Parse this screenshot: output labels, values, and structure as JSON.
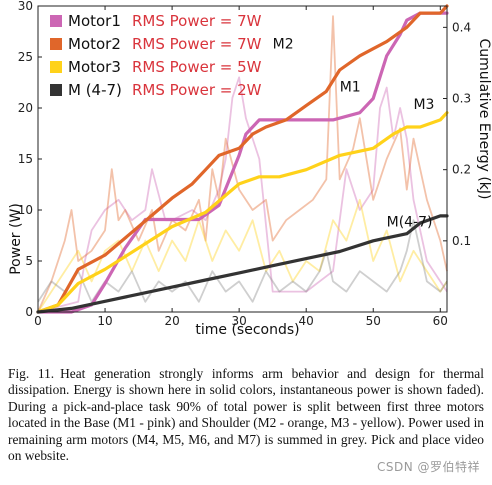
{
  "chart_data": {
    "type": "line",
    "xlabel": "time (seconds)",
    "ylabel_left": "Power (W)",
    "ylabel_right": "Cumulative Energy (kJ)",
    "xlim": [
      0,
      61
    ],
    "ylim_left": [
      0,
      30
    ],
    "ylim_right": [
      0,
      0.43
    ],
    "x_ticks": [
      0,
      10,
      20,
      30,
      40,
      50,
      60
    ],
    "y_left_ticks": [
      0,
      5,
      10,
      15,
      20,
      25,
      30
    ],
    "y_right_ticks": [
      0.1,
      0.2,
      0.3,
      0.4
    ],
    "legend_position": "top-left",
    "legend": [
      {
        "name": "Motor1",
        "rms": "RMS Power = 7W",
        "color": "#cc66b4"
      },
      {
        "name": "Motor2",
        "rms": "RMS Power = 7W",
        "color": "#e0662a"
      },
      {
        "name": "Motor3",
        "rms": "RMS Power = 5W",
        "color": "#ffd21a"
      },
      {
        "name": "M (4-7)",
        "rms": "RMS Power = 2W",
        "color": "#333333"
      }
    ],
    "energy_series": [
      {
        "name": "Motor1",
        "label": "M1",
        "color": "#cc66b4",
        "x": [
          0,
          5,
          8,
          10,
          13,
          16,
          20,
          24,
          27,
          30,
          31,
          33,
          36,
          40,
          41,
          44,
          48,
          50,
          52,
          54,
          55,
          57,
          60,
          61
        ],
        "y": [
          0,
          0,
          0.01,
          0.04,
          0.09,
          0.13,
          0.13,
          0.13,
          0.15,
          0.22,
          0.25,
          0.27,
          0.27,
          0.27,
          0.27,
          0.27,
          0.28,
          0.3,
          0.36,
          0.39,
          0.41,
          0.42,
          0.42,
          0.42
        ]
      },
      {
        "name": "Motor2",
        "label": "M2",
        "color": "#e0662a",
        "x": [
          0,
          3,
          6,
          10,
          15,
          20,
          23,
          25,
          27,
          30,
          32,
          34,
          37,
          40,
          43,
          45,
          48,
          50,
          52,
          55,
          57,
          60,
          61
        ],
        "y": [
          0,
          0.01,
          0.06,
          0.08,
          0.12,
          0.16,
          0.18,
          0.2,
          0.22,
          0.23,
          0.25,
          0.26,
          0.27,
          0.29,
          0.31,
          0.34,
          0.36,
          0.37,
          0.38,
          0.4,
          0.42,
          0.42,
          0.43
        ]
      },
      {
        "name": "Motor3",
        "label": "M3",
        "color": "#ffd21a",
        "x": [
          0,
          3,
          6,
          10,
          15,
          20,
          25,
          30,
          33,
          36,
          40,
          45,
          50,
          53,
          55,
          57,
          60,
          61
        ],
        "y": [
          0,
          0.01,
          0.04,
          0.06,
          0.09,
          0.12,
          0.14,
          0.18,
          0.19,
          0.19,
          0.2,
          0.22,
          0.23,
          0.25,
          0.26,
          0.26,
          0.27,
          0.28
        ]
      },
      {
        "name": "M (4-7)",
        "label": "M(4-7)",
        "color": "#333333",
        "x": [
          0,
          5,
          10,
          15,
          20,
          25,
          30,
          35,
          40,
          45,
          50,
          55,
          57,
          60,
          61
        ],
        "y": [
          0,
          0.005,
          0.015,
          0.025,
          0.035,
          0.045,
          0.055,
          0.065,
          0.075,
          0.085,
          0.1,
          0.11,
          0.125,
          0.135,
          0.135
        ]
      }
    ],
    "power_series": [
      {
        "name": "Motor1",
        "color": "#cc66b4",
        "x": [
          0,
          6,
          7,
          8,
          10,
          12,
          14,
          16,
          17,
          19,
          20,
          23,
          25,
          27,
          28,
          29,
          30,
          31,
          33,
          35,
          40,
          44,
          46,
          48,
          50,
          51,
          52,
          53,
          54,
          55,
          56,
          58,
          60,
          61
        ],
        "y": [
          0,
          1,
          5,
          8,
          10,
          11,
          9,
          10,
          14,
          9,
          9,
          10,
          9,
          12,
          15,
          21,
          23,
          19,
          15,
          2,
          2,
          4,
          14,
          10,
          12,
          20,
          22,
          17,
          20,
          17,
          11,
          5,
          3,
          2
        ]
      },
      {
        "name": "Motor2",
        "color": "#e0662a",
        "x": [
          0,
          2,
          4,
          5,
          6,
          8,
          10,
          11,
          12,
          13,
          15,
          17,
          18,
          20,
          22,
          24,
          25,
          26,
          27,
          28,
          30,
          32,
          34,
          35,
          37,
          39,
          41,
          43,
          44,
          45,
          47,
          48,
          50,
          52,
          54,
          55,
          56,
          58,
          60,
          61
        ],
        "y": [
          0,
          3,
          7,
          10,
          5,
          6,
          8,
          14,
          9,
          10,
          7,
          10,
          6,
          9,
          8,
          11,
          7,
          14,
          11,
          17,
          12,
          10,
          11,
          7,
          9,
          10,
          11,
          13,
          29,
          13,
          16,
          19,
          11,
          15,
          18,
          12,
          17,
          11,
          7,
          4
        ]
      },
      {
        "name": "Motor3",
        "color": "#ffd21a",
        "x": [
          0,
          2,
          4,
          6,
          8,
          10,
          12,
          14,
          16,
          18,
          20,
          22,
          24,
          26,
          28,
          30,
          32,
          34,
          36,
          38,
          40,
          42,
          44,
          46,
          48,
          50,
          52,
          54,
          56,
          58,
          60,
          61
        ],
        "y": [
          0,
          2,
          4,
          6,
          3,
          6,
          7,
          4,
          7,
          4,
          7,
          5,
          9,
          5,
          8,
          6,
          9,
          4,
          6,
          3,
          5,
          4,
          9,
          7,
          11,
          5,
          8,
          3,
          6,
          4,
          2,
          3
        ]
      },
      {
        "name": "M (4-7)",
        "color": "#888888",
        "x": [
          0,
          2,
          4,
          6,
          8,
          10,
          12,
          14,
          16,
          18,
          20,
          22,
          24,
          26,
          28,
          30,
          32,
          34,
          36,
          38,
          40,
          42,
          43,
          44,
          46,
          48,
          50,
          52,
          54,
          55,
          56,
          58,
          60,
          61
        ],
        "y": [
          1,
          3,
          2,
          4,
          1,
          3,
          2,
          4,
          1,
          3,
          2,
          3,
          1,
          4,
          2,
          3,
          1,
          4,
          2,
          3,
          2,
          4,
          6,
          3,
          2,
          4,
          3,
          2,
          4,
          6,
          9,
          3,
          2,
          3
        ]
      }
    ]
  },
  "caption": {
    "fig_label": "Fig. 11.",
    "text": "Heat generation strongly informs arm behavior and design for thermal dissipation. Energy is shown here in solid colors, instantaneous power is shown faded). During a pick-and-place task 90% of total power is split between first three motors located in the Base (M1 - pink) and Shoulder (M2 - orange, M3 - yellow). Power used in remaining arm motors (M4, M5, M6, and M7) is summed in grey. Pick and place video on website."
  },
  "watermark": "CSDN @罗伯特祥"
}
